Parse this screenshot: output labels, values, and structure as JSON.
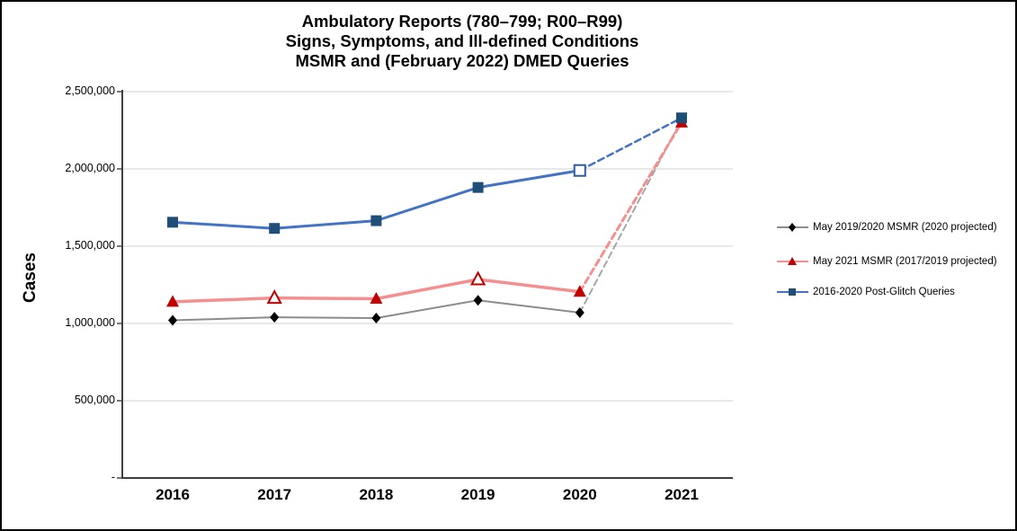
{
  "chart_data": {
    "type": "line",
    "title_lines": [
      "Ambulatory Reports (780–799; R00–R99)",
      "Signs, Symptoms, and Ill-defined Conditions",
      "MSMR and (February 2022) DMED Queries"
    ],
    "ylabel": "Cases",
    "xlabel": "",
    "categories": [
      "2016",
      "2017",
      "2018",
      "2019",
      "2020",
      "2021"
    ],
    "y_axis": {
      "min": 0,
      "max": 2500000,
      "tick_step": 500000,
      "tick_labels": [
        "-",
        "500,000",
        "1,000,000",
        "1,500,000",
        "2,000,000",
        "2,500,000"
      ]
    },
    "grid": "horizontal",
    "grid_color": "#D9D9D9",
    "axis_color": "#3F3F3F",
    "legend_position": "right",
    "series": [
      {
        "name": "May 2019/2020 MSMR (2020 projected)",
        "values": [
          1020000,
          1040000,
          1035000,
          1150000,
          1070000,
          2320000
        ],
        "line_color": "#8C8C8C",
        "line_width": 2,
        "dash_color": "#A6A6A6",
        "marker": {
          "shape": "diamond",
          "fill": "#000000",
          "size": 10
        },
        "open_marker_indices": [],
        "open_marker_stroke": "#000000",
        "dashed_from_index": 4,
        "note": "dashed projected segment 2020-2021"
      },
      {
        "name": "May 2021 MSMR (2017/2019 projected)",
        "values": [
          1140000,
          1165000,
          1160000,
          1285000,
          1205000,
          2300000
        ],
        "line_color": "#F58F8F",
        "line_width": 3.5,
        "dash_color": "#F58F8F",
        "marker": {
          "shape": "triangle",
          "fill": "#C00000",
          "size": 13
        },
        "open_marker_indices": [
          1,
          3
        ],
        "open_marker_stroke": "#C00000",
        "dashed_from_index": 4,
        "note": "open triangles = projected 2017/2019; dashed segment 2020-2021"
      },
      {
        "name": "2016-2020 Post-Glitch Queries",
        "values": [
          1655000,
          1615000,
          1665000,
          1880000,
          1990000,
          2330000
        ],
        "line_color": "#4472C4",
        "line_width": 3,
        "dash_color": "#4472C4",
        "marker": {
          "shape": "square",
          "fill": "#1F4E79",
          "size": 12
        },
        "open_marker_indices": [
          4
        ],
        "open_marker_stroke": "#2E5D9F",
        "dashed_from_index": 4,
        "note": "open square = 2020 projected; dashed segment 2020-2021"
      }
    ]
  }
}
